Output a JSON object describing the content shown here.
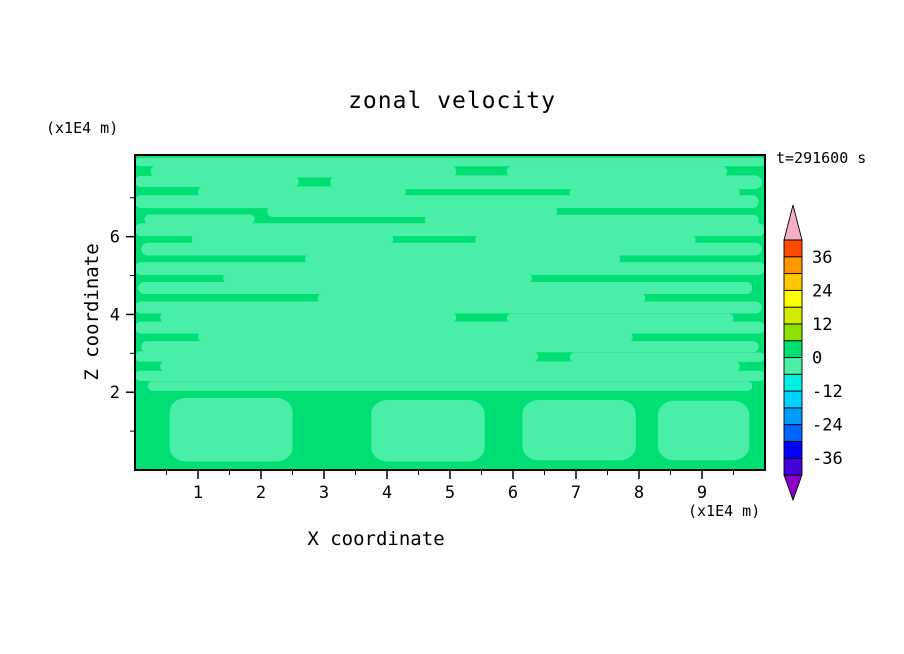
{
  "title": "zonal velocity",
  "timestamp": "t=291600 s",
  "axes": {
    "x": {
      "label": "X coordinate",
      "unit": "(x1E4 m)",
      "ticks": [
        "1",
        "2",
        "3",
        "4",
        "5",
        "6",
        "7",
        "8",
        "9"
      ],
      "tick_values": [
        1,
        2,
        3,
        4,
        5,
        6,
        7,
        8,
        9
      ],
      "range": [
        0,
        10
      ]
    },
    "z": {
      "label": "Z coordinate",
      "unit": "(x1E4 m)",
      "ticks": [
        "2",
        "4",
        "6"
      ],
      "tick_values": [
        2,
        4,
        6
      ],
      "range": [
        0,
        8.1
      ]
    }
  },
  "colorbar": {
    "labels": [
      "36",
      "24",
      "12",
      "0",
      "-12",
      "-24",
      "-36"
    ],
    "label_values": [
      36,
      24,
      12,
      0,
      -12,
      -24,
      -36
    ],
    "level_step": 6,
    "level_range": [
      -42,
      42
    ],
    "segment_colors_bottom_to_top": [
      "#4400DD",
      "#0000FF",
      "#0064FF",
      "#009CFF",
      "#00D2FF",
      "#00F0E1",
      "#49EFA7",
      "#00DF73",
      "#8CE000",
      "#D2EC00",
      "#FFFF00",
      "#FFC800",
      "#FF9600",
      "#FF4B00"
    ],
    "top_arrow_color": "#F5AFC3",
    "bottom_arrow_color": "#8A00C8"
  },
  "chart_data": {
    "type": "heatmap",
    "subtype": "filled-contour",
    "title": "zonal velocity",
    "xlabel": "X coordinate",
    "ylabel": "Z coordinate",
    "x_range": [
      0,
      10
    ],
    "z_range": [
      0,
      8.1
    ],
    "field_description": "mostly values in 0..6 band (green) with thin horizontal streaks and bottom blobs in -6..0 band (aquamarine)",
    "background_color": "#00DF73",
    "band_color": "#49EFA7",
    "bands": [
      [
        7.92,
        0.0,
        10.0,
        0.1
      ],
      [
        7.68,
        0.25,
        5.1,
        0.14
      ],
      [
        7.68,
        5.9,
        9.4,
        0.12
      ],
      [
        7.42,
        0.0,
        2.6,
        0.13
      ],
      [
        7.4,
        3.1,
        9.95,
        0.16
      ],
      [
        7.15,
        1.0,
        4.3,
        0.13
      ],
      [
        7.13,
        6.9,
        9.6,
        0.12
      ],
      [
        6.9,
        0.0,
        9.9,
        0.15
      ],
      [
        6.65,
        2.1,
        6.7,
        0.13
      ],
      [
        6.45,
        0.15,
        1.9,
        0.11
      ],
      [
        6.42,
        4.6,
        9.9,
        0.13
      ],
      [
        6.18,
        0.0,
        10.0,
        0.15
      ],
      [
        5.93,
        0.9,
        4.1,
        0.12
      ],
      [
        5.92,
        5.4,
        8.9,
        0.12
      ],
      [
        5.68,
        0.1,
        9.95,
        0.15
      ],
      [
        5.42,
        2.7,
        7.7,
        0.13
      ],
      [
        5.18,
        0.0,
        10.0,
        0.15
      ],
      [
        4.93,
        1.4,
        6.3,
        0.12
      ],
      [
        4.68,
        0.05,
        9.8,
        0.14
      ],
      [
        4.42,
        2.9,
        8.1,
        0.12
      ],
      [
        4.18,
        0.0,
        9.95,
        0.14
      ],
      [
        3.92,
        0.4,
        5.1,
        0.12
      ],
      [
        3.9,
        5.9,
        9.5,
        0.11
      ],
      [
        3.66,
        0.0,
        10.0,
        0.14
      ],
      [
        3.42,
        1.0,
        7.9,
        0.12
      ],
      [
        3.17,
        0.1,
        9.9,
        0.13
      ],
      [
        2.92,
        0.0,
        6.4,
        0.12
      ],
      [
        2.9,
        6.9,
        10.0,
        0.11
      ],
      [
        2.66,
        0.4,
        9.6,
        0.12
      ],
      [
        2.42,
        0.0,
        10.0,
        0.12
      ],
      [
        2.16,
        0.2,
        9.8,
        0.11
      ]
    ],
    "blobs": [
      {
        "x0": 0.55,
        "x1": 2.5,
        "z0": 0.22,
        "z1": 1.85
      },
      {
        "x0": 3.75,
        "x1": 5.55,
        "z0": 0.22,
        "z1": 1.8
      },
      {
        "x0": 6.15,
        "x1": 7.95,
        "z0": 0.25,
        "z1": 1.8
      },
      {
        "x0": 8.3,
        "x1": 9.75,
        "z0": 0.25,
        "z1": 1.78
      }
    ]
  }
}
